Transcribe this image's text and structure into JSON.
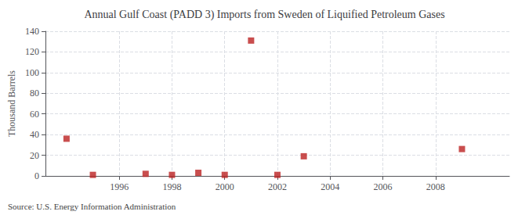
{
  "chart_data": {
    "type": "scatter",
    "title": "Annual Gulf Coast (PADD 3) Imports from Sweden of Liquified Petroleum Gases",
    "ylabel": "Thousand Barrels",
    "source": "Source: U.S. Energy Information Administration",
    "x": [
      1994,
      1995,
      1997,
      1998,
      1999,
      2000,
      2001,
      2002,
      2003,
      2009
    ],
    "values": [
      36,
      1,
      2,
      1,
      3,
      1,
      131,
      1,
      19,
      26
    ],
    "xlim": [
      1993.2,
      2010.8
    ],
    "ylim": [
      0,
      140
    ],
    "xticks": [
      1996,
      1998,
      2000,
      2002,
      2004,
      2006,
      2008
    ],
    "yticks": [
      0,
      20,
      40,
      60,
      80,
      100,
      120,
      140
    ],
    "color": "#bb2222",
    "marker": "square",
    "grid": true
  }
}
